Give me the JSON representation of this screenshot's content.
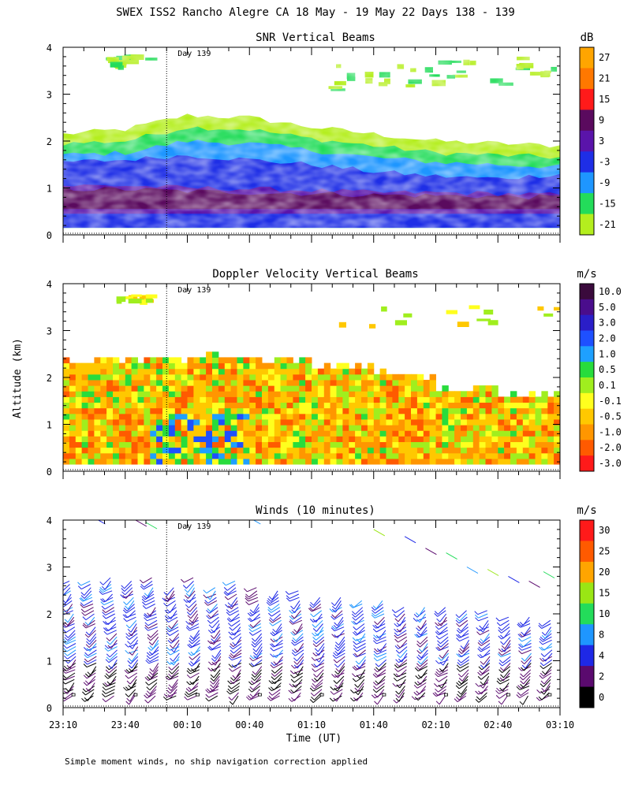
{
  "figure": {
    "title": "SWEX ISS2 Rancho Alegre CA  18 May - 19 May 22 Days 138 - 139",
    "ylabel": "Altitude (km)",
    "xlabel": "Time (UT)",
    "xticks": [
      "23:10",
      "23:40",
      "00:10",
      "00:40",
      "01:10",
      "01:40",
      "02:10",
      "02:40",
      "03:10"
    ],
    "xlim_minutes": [
      0,
      240
    ],
    "yticks": [
      "0",
      "1",
      "2",
      "3",
      "4"
    ],
    "ylim_km": [
      0,
      4
    ],
    "day_marker": {
      "label": "Day 139",
      "minutes": 50
    },
    "footnote": "Simple moment winds, no ship navigation correction applied"
  },
  "chart_data": [
    {
      "type": "heatmap",
      "title": "SNR Vertical Beams",
      "xlabel": "Time (UT)",
      "ylabel": "Altitude (km)",
      "ylim": [
        0,
        4
      ],
      "colorbar": {
        "unit": "dB",
        "labels": [
          "27",
          "21",
          "15",
          "9",
          "3",
          "-3",
          "-9",
          "-15",
          "-21"
        ],
        "colors": [
          "#ffa500",
          "#ff7800",
          "#ff1a1a",
          "#5a0a5e",
          "#5a14aa",
          "#1e2ee6",
          "#1e96ff",
          "#23dc5a",
          "#b4ee1e"
        ]
      },
      "description_levels_km": {
        "strong_layer": [
          0.5,
          1.0
        ],
        "moderate_layer": [
          1.0,
          1.8
        ],
        "weak_top": [
          1.8,
          2.4
        ],
        "upper_patches": [
          3.2,
          3.8
        ]
      }
    },
    {
      "type": "heatmap",
      "title": "Doppler Velocity Vertical Beams",
      "xlabel": "Time (UT)",
      "ylabel": "Altitude (km)",
      "ylim": [
        0,
        4
      ],
      "colorbar": {
        "unit": "m/s",
        "labels": [
          "10.0",
          "5.0",
          "3.0",
          "2.0",
          "1.0",
          "0.5",
          "0.1",
          "-0.1",
          "-0.5",
          "-1.0",
          "-2.0",
          "-3.0"
        ],
        "colors": [
          "#3a0a3c",
          "#4a0d8c",
          "#2a1ec8",
          "#1e50ff",
          "#1ea0ff",
          "#28dc3c",
          "#a0ee1e",
          "#ffff1e",
          "#ffc800",
          "#ff9600",
          "#ff5a00",
          "#ff1a1a"
        ]
      }
    },
    {
      "type": "scatter",
      "title": "Winds (10 minutes)",
      "xlabel": "Time (UT)",
      "ylabel": "Altitude (km)",
      "ylim": [
        0,
        4
      ],
      "colorbar": {
        "unit": "m/s",
        "labels": [
          "30",
          "25",
          "20",
          "15",
          "10",
          "8",
          "4",
          "2",
          "0"
        ],
        "colors": [
          "#ff1a1a",
          "#ff5a00",
          "#ffa500",
          "#9ae614",
          "#23dc5a",
          "#1e96ff",
          "#1e28e6",
          "#5a0a6e",
          "#000000"
        ]
      },
      "profile_times_minutes": [
        5,
        15,
        25,
        35,
        45,
        55,
        65,
        75,
        85,
        95,
        105,
        115,
        125,
        135,
        145,
        155,
        165,
        175,
        185,
        195,
        205,
        215,
        225,
        235
      ],
      "profile_top_km": [
        2.7,
        2.7,
        2.8,
        2.7,
        2.8,
        2.6,
        2.8,
        2.6,
        2.7,
        2.6,
        2.5,
        2.5,
        2.4,
        2.4,
        2.3,
        2.3,
        2.2,
        2.2,
        2.2,
        2.1,
        2.1,
        2.0,
        2.0,
        1.9
      ]
    }
  ]
}
